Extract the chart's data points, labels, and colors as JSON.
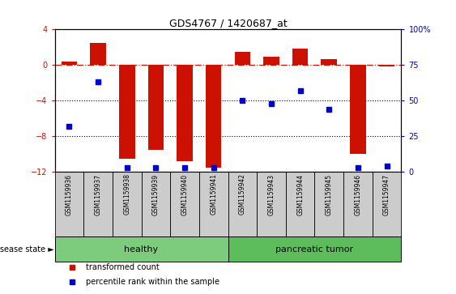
{
  "title": "GDS4767 / 1420687_at",
  "samples": [
    "GSM1159936",
    "GSM1159937",
    "GSM1159938",
    "GSM1159939",
    "GSM1159940",
    "GSM1159941",
    "GSM1159942",
    "GSM1159943",
    "GSM1159944",
    "GSM1159945",
    "GSM1159946",
    "GSM1159947"
  ],
  "transformed_count": [
    0.4,
    2.5,
    -10.5,
    -9.5,
    -10.8,
    -11.5,
    1.5,
    0.9,
    1.8,
    0.7,
    -10.0,
    -0.2
  ],
  "percentile_rank": [
    32,
    63,
    3,
    3,
    3,
    3,
    50,
    48,
    57,
    44,
    3,
    4
  ],
  "groups": [
    {
      "label": "healthy",
      "start": 0,
      "end": 5
    },
    {
      "label": "pancreatic tumor",
      "start": 6,
      "end": 11
    }
  ],
  "bar_color": "#cc1100",
  "dot_color": "#0000cc",
  "left_ylim": [
    -12,
    4
  ],
  "left_yticks": [
    -12,
    -8,
    -4,
    0,
    4
  ],
  "right_ylim": [
    0,
    100
  ],
  "right_yticks": [
    0,
    25,
    50,
    75,
    100
  ],
  "right_yticklabels": [
    "0",
    "25",
    "50",
    "75",
    "100%"
  ],
  "hline_y": 0,
  "dotted_lines": [
    -4,
    -8
  ],
  "group_colors": [
    "#7dcc7d",
    "#5dbd5d"
  ],
  "sample_box_color": "#cccccc",
  "legend_items": [
    {
      "label": "transformed count",
      "color": "#cc1100"
    },
    {
      "label": "percentile rank within the sample",
      "color": "#0000cc"
    }
  ],
  "disease_state_label": "disease state",
  "bar_width": 0.55
}
